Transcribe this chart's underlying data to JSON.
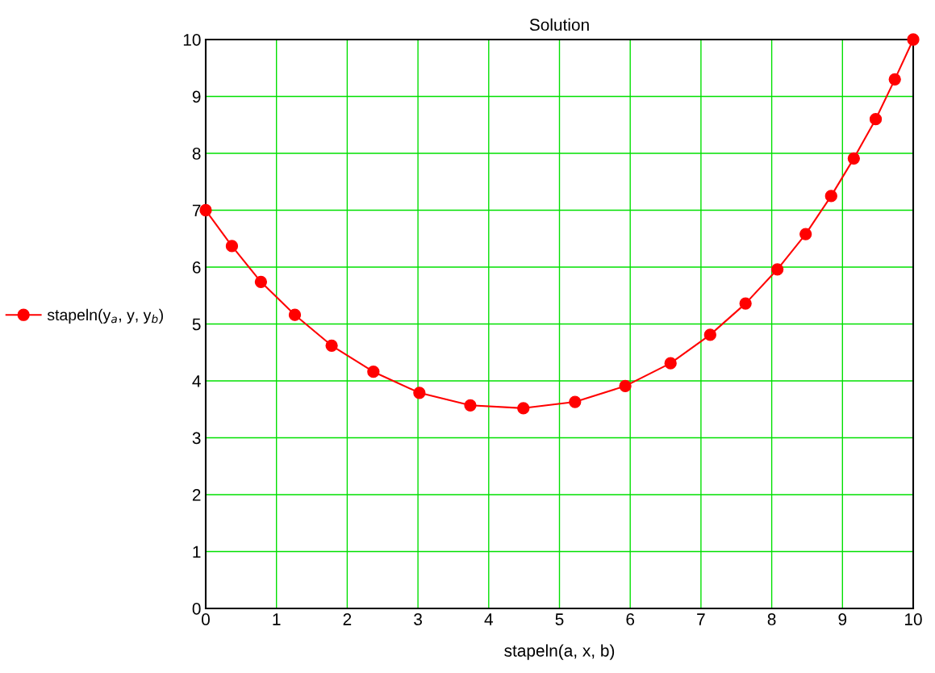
{
  "chart_data": {
    "type": "line",
    "title": "Solution",
    "xlabel": "stapeln(a, x, b)",
    "x": [
      0,
      0.37,
      0.78,
      1.26,
      1.78,
      2.37,
      3.02,
      3.74,
      4.49,
      5.22,
      5.93,
      6.57,
      7.13,
      7.63,
      8.08,
      8.48,
      8.84,
      9.16,
      9.47,
      9.74,
      10
    ],
    "series": [
      {
        "name": "stapeln(y$_{a}$, y, y$_{b}$)",
        "color": "#ff0000",
        "values": [
          7.0,
          6.37,
          5.74,
          5.16,
          4.62,
          4.16,
          3.79,
          3.57,
          3.52,
          3.63,
          3.91,
          4.31,
          4.81,
          5.36,
          5.96,
          6.58,
          7.25,
          7.91,
          8.6,
          9.3,
          10
        ]
      }
    ],
    "xlim": [
      0,
      10
    ],
    "ylim": [
      0,
      10
    ],
    "xticks": [
      0,
      1,
      2,
      3,
      4,
      5,
      6,
      7,
      8,
      9,
      10
    ],
    "yticks": [
      0,
      1,
      2,
      3,
      4,
      5,
      6,
      7,
      8,
      9,
      10
    ],
    "grid": true,
    "legend": "left",
    "marker": "circle",
    "line_style": "solid"
  }
}
